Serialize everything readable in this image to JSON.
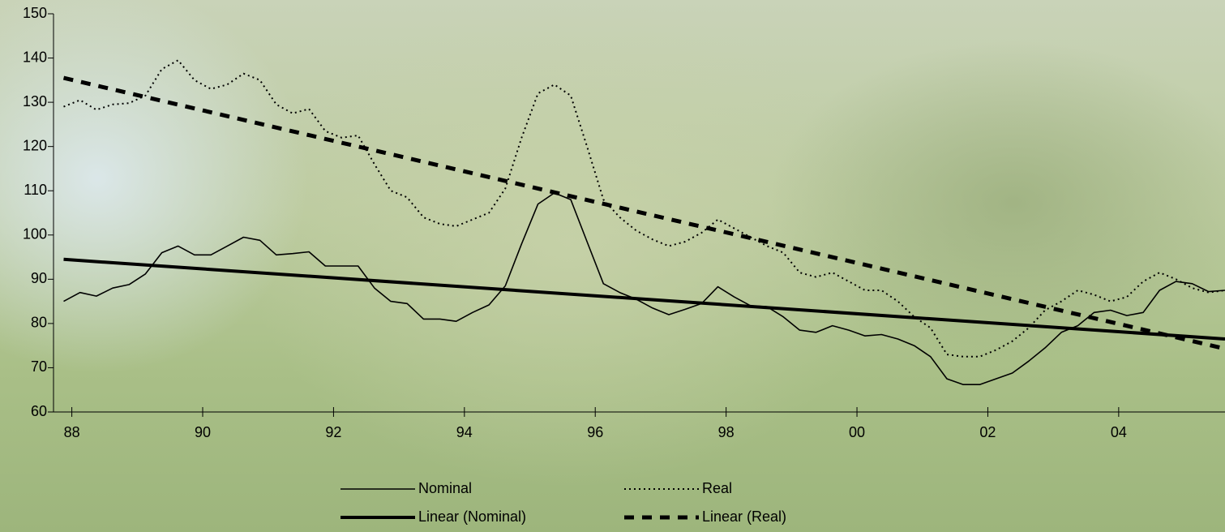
{
  "chart_data": {
    "type": "line",
    "x": [
      1987.875,
      1988.125,
      1988.375,
      1988.625,
      1988.875,
      1989.125,
      1989.375,
      1989.625,
      1989.875,
      1990.125,
      1990.375,
      1990.625,
      1990.875,
      1991.125,
      1991.375,
      1991.625,
      1991.875,
      1992.125,
      1992.375,
      1992.625,
      1992.875,
      1993.125,
      1993.375,
      1993.625,
      1993.875,
      1994.125,
      1994.375,
      1994.625,
      1994.875,
      1995.125,
      1995.375,
      1995.625,
      1995.875,
      1996.125,
      1996.375,
      1996.625,
      1996.875,
      1997.125,
      1997.375,
      1997.625,
      1997.875,
      1998.125,
      1998.375,
      1998.625,
      1998.875,
      1999.125,
      1999.375,
      1999.625,
      1999.875,
      2000.125,
      2000.375,
      2000.625,
      2000.875,
      2001.125,
      2001.375,
      2001.625,
      2001.875,
      2002.125,
      2002.375,
      2002.625,
      2002.875,
      2003.125,
      2003.375,
      2003.625,
      2003.875,
      2004.125,
      2004.375,
      2004.625,
      2004.875,
      2005.125,
      2005.375,
      2005.625
    ],
    "series": [
      {
        "name": "Nominal",
        "color": "#000000",
        "style": "thin",
        "values": [
          85,
          87,
          86.2,
          88,
          88.8,
          91.2,
          96,
          97.5,
          95.5,
          95.5,
          97.5,
          99.5,
          98.8,
          95.5,
          95.8,
          96.2,
          93,
          93,
          93,
          88,
          85,
          84.5,
          81,
          81,
          80.5,
          82.5,
          84.2,
          88.5,
          98,
          107,
          109.5,
          108,
          98.5,
          89,
          87,
          85.5,
          83.5,
          82,
          83.2,
          84.5,
          88.3,
          86,
          84,
          83.8,
          81.5,
          78.5,
          78,
          79.5,
          78.5,
          77.2,
          77.5,
          76.5,
          75,
          72.5,
          67.5,
          66.2,
          66.2,
          67.5,
          68.8,
          71.5,
          74.5,
          78,
          79.5,
          82.5,
          83,
          81.8,
          82.5,
          87.5,
          89.5,
          89,
          87.2,
          87.5
        ]
      },
      {
        "name": "Real",
        "color": "#000000",
        "style": "dotted",
        "values": [
          129,
          130.5,
          128.3,
          129.5,
          129.8,
          131.5,
          137.5,
          139.5,
          135,
          133,
          134,
          136.5,
          135,
          129.5,
          127.5,
          128.5,
          123.5,
          122,
          122.5,
          116,
          110,
          108.5,
          104,
          102.5,
          102,
          103.5,
          105,
          110.5,
          122,
          132,
          134,
          131.5,
          120,
          108,
          104,
          101,
          99,
          97.5,
          98.5,
          100.5,
          103.5,
          101.5,
          99.5,
          97.5,
          96,
          91.5,
          90.5,
          91.5,
          89.5,
          87.5,
          87.5,
          85,
          81.5,
          79,
          73,
          72.5,
          72.5,
          74,
          76,
          79,
          83,
          85,
          87.5,
          86.5,
          85,
          86,
          89.5,
          91.5,
          90,
          88,
          87,
          87.5
        ]
      },
      {
        "name": "Linear (Nominal)",
        "color": "#000000",
        "style": "thick",
        "x": [
          1987.875,
          2005.625
        ],
        "values": [
          94.5,
          76.5
        ]
      },
      {
        "name": "Linear (Real)",
        "color": "#000000",
        "style": "thick-dashed",
        "x": [
          1987.875,
          2005.625
        ],
        "values": [
          135.5,
          74.3
        ]
      }
    ],
    "xlim": [
      1987.72,
      2005.625
    ],
    "xticks": [
      {
        "value": 1988,
        "label": "88"
      },
      {
        "value": 1990,
        "label": "90"
      },
      {
        "value": 1992,
        "label": "92"
      },
      {
        "value": 1994,
        "label": "94"
      },
      {
        "value": 1996,
        "label": "96"
      },
      {
        "value": 1998,
        "label": "98"
      },
      {
        "value": 2000,
        "label": "00"
      },
      {
        "value": 2002,
        "label": "02"
      },
      {
        "value": 2004,
        "label": "04"
      }
    ],
    "ylim": [
      60,
      150
    ],
    "yticks": [
      60,
      70,
      80,
      90,
      100,
      110,
      120,
      130,
      140,
      150
    ],
    "grid": false,
    "legend": "bottom"
  }
}
